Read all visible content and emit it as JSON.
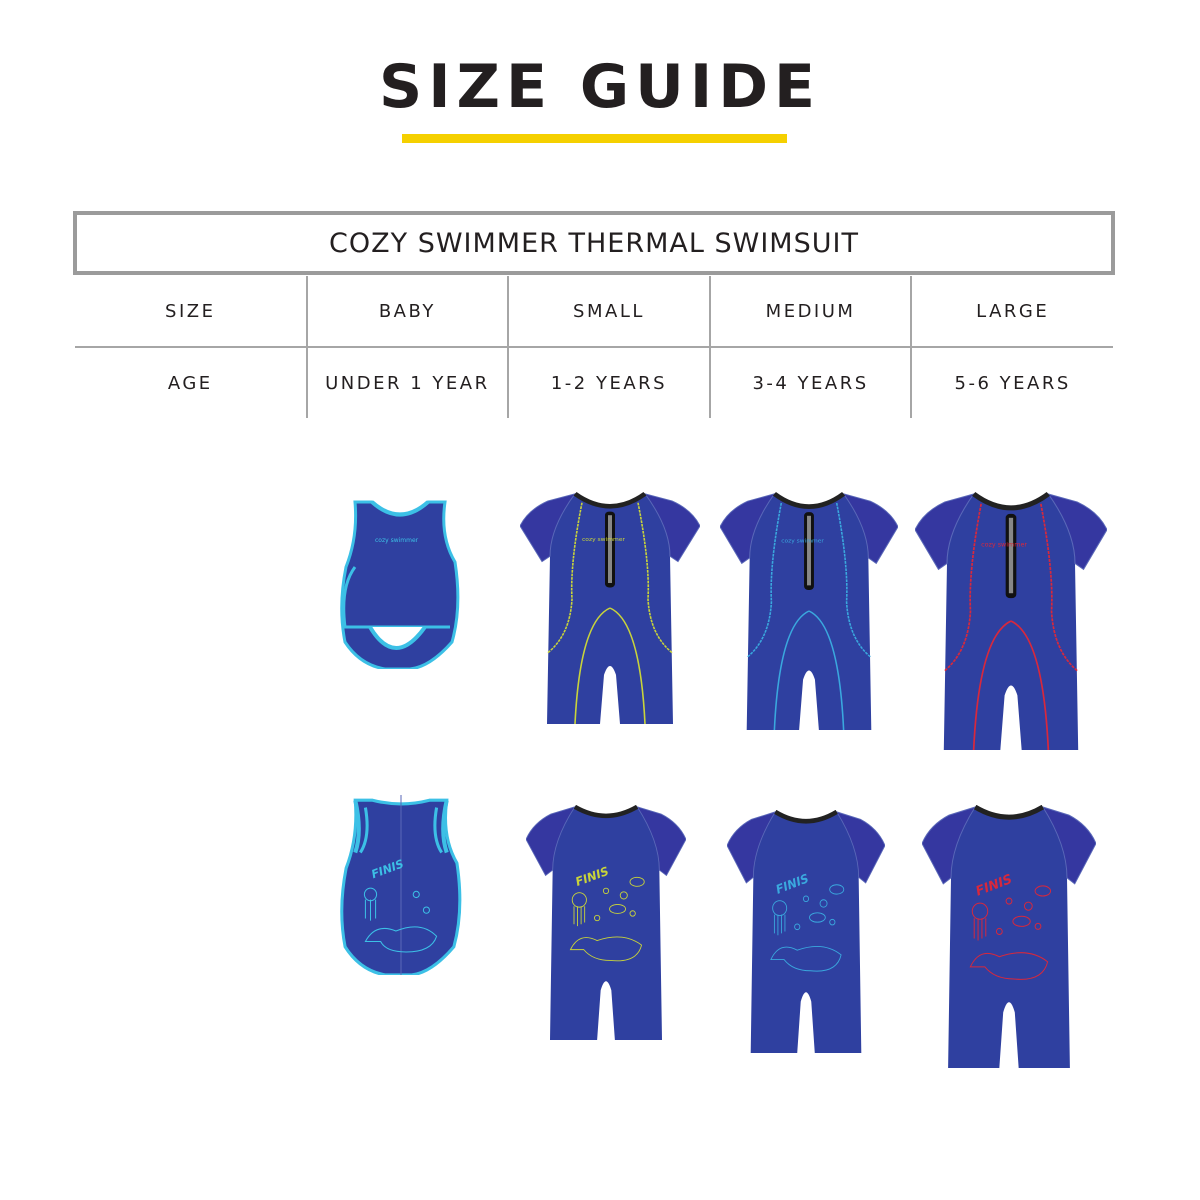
{
  "header": {
    "title": "SIZE GUIDE",
    "accent_color": "#f5d000"
  },
  "table": {
    "product_name": "COZY SWIMMER THERMAL SWIMSUIT",
    "rows": [
      {
        "label": "SIZE",
        "values": [
          "BABY",
          "SMALL",
          "MEDIUM",
          "LARGE"
        ]
      },
      {
        "label": "AGE",
        "values": [
          "UNDER 1 YEAR",
          "1-2 YEARS",
          "3-4 YEARS",
          "5-6 YEARS"
        ]
      }
    ]
  },
  "suits": {
    "body_color": "#2f40a0",
    "sleeve_color": "#3537a0",
    "front_logo": "cozy swimmer",
    "back_logo": "FINIS",
    "items": [
      {
        "size": "BABY",
        "style": "sleeveless-wrap",
        "trim_color": "#3cc0e6"
      },
      {
        "size": "SMALL",
        "style": "shortie",
        "trim_color": "#c9d43a"
      },
      {
        "size": "MEDIUM",
        "style": "shortie",
        "trim_color": "#3aa8de"
      },
      {
        "size": "LARGE",
        "style": "shortie",
        "trim_color": "#d8283c"
      }
    ]
  }
}
